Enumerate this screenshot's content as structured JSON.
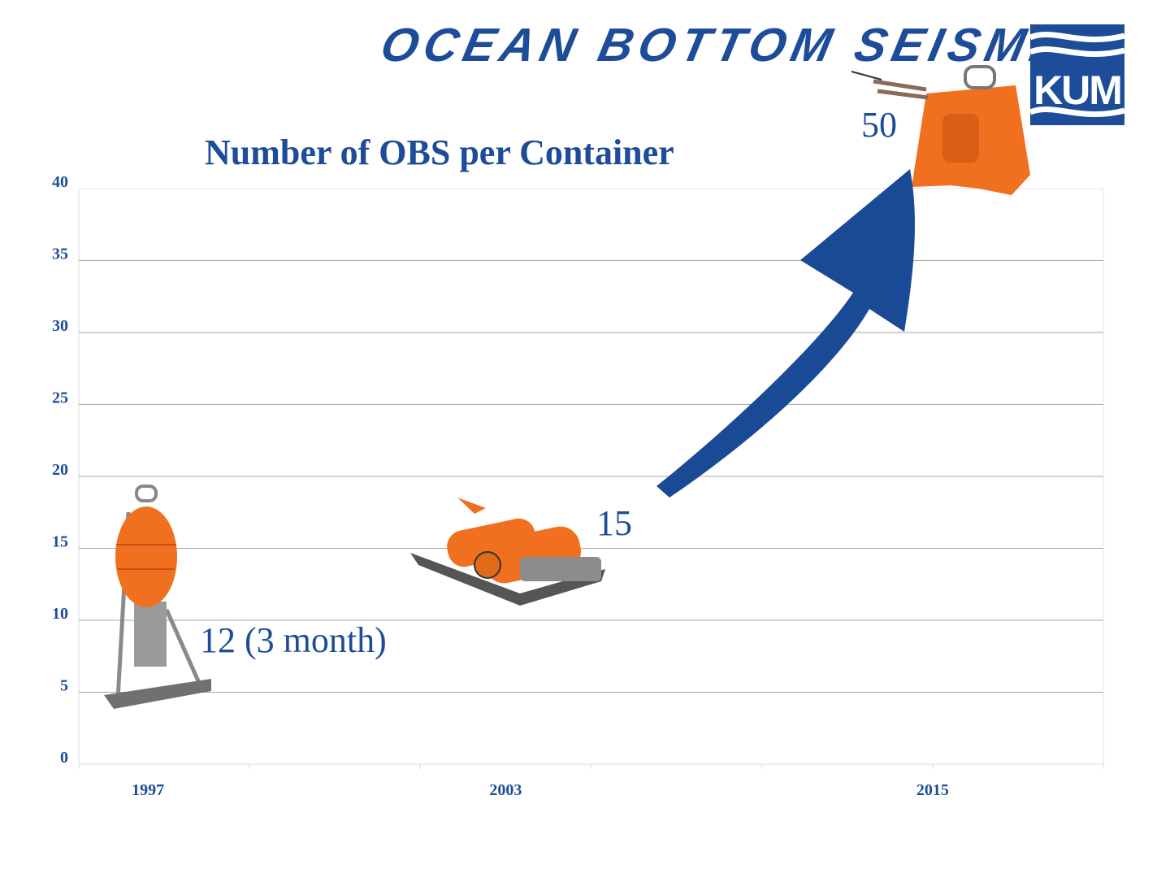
{
  "header": {
    "banner_text": "OCEAN BOTTOM SEISMICS",
    "logo_text": "KUM"
  },
  "chart_data": {
    "type": "scatter",
    "title": "Number of OBS per Container",
    "xlabel": "",
    "ylabel": "",
    "categories": [
      "1997",
      "2003",
      "2015"
    ],
    "values": [
      12,
      15,
      50
    ],
    "point_labels": [
      "12 (3 month)",
      "15",
      "50"
    ],
    "ylim": [
      0,
      40
    ],
    "yticks": [
      0,
      5,
      10,
      15,
      20,
      25,
      30,
      35,
      40
    ],
    "grid": true,
    "legend": "none",
    "colors": {
      "text": "#1d4c98",
      "arrow": "#1a4a96",
      "device": "#f07020",
      "gridline": "#a6a6a6"
    }
  }
}
